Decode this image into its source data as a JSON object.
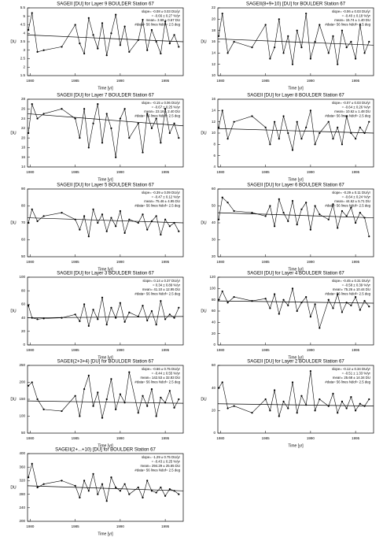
{
  "chart_data": [
    {
      "type": "line",
      "title": "SAGEII [DU] for Layer 9 BOULDER Station 67",
      "xlabel": "Time [yr]",
      "ylabel": "DU",
      "annotations": [
        "slope= -0.08 ± 0.03 DU/yr",
        "= -0.66 ± 0.27 %/yr",
        "mean= 3.68 ± 0.67 DU",
        "#data= 56 lines  Ndof= 2.5 deg"
      ],
      "xlim": [
        1979.7,
        1997
      ],
      "xticks": [
        1980,
        1985,
        1990,
        1995
      ],
      "ylim": [
        1.5,
        5.5
      ],
      "yticks": [
        1.5,
        2.0,
        2.5,
        3.0,
        3.5,
        4.0,
        4.5,
        5.0,
        5.5
      ],
      "color": "#000000",
      "x": [
        1979.8,
        1980.2,
        1980.8,
        1981.5,
        1983.5,
        1985,
        1985.5,
        1986,
        1986.5,
        1987,
        1987.5,
        1988,
        1988.5,
        1989,
        1989.5,
        1990,
        1990.5,
        1991,
        1992,
        1992.5,
        1993,
        1993.5,
        1994,
        1994.5,
        1995,
        1995.5,
        1996,
        1996.5
      ],
      "values": [
        4.2,
        5.2,
        2.9,
        3.0,
        3.2,
        4.5,
        3.4,
        2.8,
        4.9,
        3.9,
        3.1,
        4.6,
        2.7,
        4.0,
        5.1,
        3.3,
        4.4,
        2.9,
        3.6,
        4.8,
        3.0,
        4.2,
        3.5,
        2.8,
        4.7,
        3.4,
        3.9,
        3.2
      ],
      "trend": {
        "x": [
          1979.7,
          1997
        ],
        "values": [
          3.9,
          3.5
        ]
      }
    },
    {
      "type": "line",
      "title": "SAGEII(8+9+10) [DU] for BOULDER Station 67",
      "xlabel": "Time [yr]",
      "ylabel": "DU",
      "annotations": [
        "slope= -0.06 ± 0.03 DU/yr",
        "= -0.40 ± 0.18 %/yr",
        "mean= 15.74 ± 1.40 DU",
        "#data= 56 lines  Ndof= 2.5 deg"
      ],
      "xlim": [
        1979.7,
        1997
      ],
      "xticks": [
        1980,
        1985,
        1990,
        1995
      ],
      "ylim": [
        10,
        22
      ],
      "yticks": [
        10,
        12,
        14,
        16,
        18,
        20,
        22
      ],
      "color": "#000000",
      "x": [
        1979.8,
        1980.2,
        1980.8,
        1981.5,
        1983.5,
        1985,
        1985.5,
        1986,
        1986.5,
        1987,
        1987.5,
        1988,
        1988.5,
        1989,
        1989.5,
        1990,
        1990.5,
        1991,
        1992,
        1992.5,
        1993,
        1993.5,
        1994,
        1994.5,
        1995,
        1995.5,
        1996,
        1996.5
      ],
      "values": [
        17,
        21,
        14,
        16,
        15,
        19,
        13,
        15,
        20,
        14,
        17,
        12,
        18,
        15,
        21,
        13,
        16,
        19,
        14,
        17,
        12,
        18,
        15,
        16,
        13,
        19,
        14,
        16
      ],
      "trend": {
        "x": [
          1979.7,
          1997
        ],
        "values": [
          16.5,
          15.4
        ]
      }
    },
    {
      "type": "line",
      "title": "SAGEII [DU] for Layer 7 BOULDER Station 67",
      "xlabel": "Time [yr]",
      "ylabel": "DU",
      "annotations": [
        "slope= -0.15 ± 0.06 DU/yr",
        "= -0.67 ± 0.25 %/yr",
        "mean= 23.16 ± 2.40 DU",
        "#data= 56 lines  Ndof= 2.5 deg"
      ],
      "xlim": [
        1979.7,
        1997
      ],
      "xticks": [
        1980,
        1985,
        1990,
        1995
      ],
      "ylim": [
        14,
        28
      ],
      "yticks": [
        14,
        16,
        18,
        20,
        22,
        24,
        26,
        28
      ],
      "color": "#000000",
      "x": [
        1979.8,
        1980.2,
        1980.8,
        1981.5,
        1983.5,
        1985,
        1985.5,
        1986,
        1986.5,
        1987,
        1987.5,
        1988,
        1988.5,
        1989,
        1989.5,
        1990,
        1990.5,
        1991,
        1992,
        1992.5,
        1993,
        1993.5,
        1994,
        1994.5,
        1995,
        1995.5,
        1996,
        1996.5
      ],
      "values": [
        21,
        27,
        24,
        25,
        26,
        24,
        20,
        26,
        18,
        23,
        27,
        19,
        25,
        22,
        16,
        24,
        26,
        20,
        23,
        17,
        25,
        22,
        24,
        19,
        26,
        21,
        23,
        20
      ],
      "trend": {
        "x": [
          1979.7,
          1997
        ],
        "values": [
          25,
          22.5
        ]
      }
    },
    {
      "type": "line",
      "title": "SAGEII [DU] for Layer 8 BOULDER Station 67",
      "xlabel": "Time [yr]",
      "ylabel": "DU",
      "annotations": [
        "slope= -0.07 ± 0.03 DU/yr",
        "= -0.64 ± 0.26 %/yr",
        "mean= 10.62 ± 1.48 DU",
        "#data= 56 lines  Ndof= 2.5 deg"
      ],
      "xlim": [
        1979.7,
        1997
      ],
      "xticks": [
        1980,
        1985,
        1990,
        1995
      ],
      "ylim": [
        4,
        16
      ],
      "yticks": [
        4,
        6,
        8,
        10,
        12,
        14,
        16
      ],
      "color": "#000000",
      "x": [
        1979.8,
        1980.2,
        1980.8,
        1981.5,
        1983.5,
        1985,
        1985.5,
        1986,
        1986.5,
        1987,
        1987.5,
        1988,
        1988.5,
        1989,
        1989.5,
        1990,
        1990.5,
        1991,
        1992,
        1992.5,
        1993,
        1993.5,
        1994,
        1994.5,
        1995,
        1995.5,
        1996,
        1996.5
      ],
      "values": [
        11,
        14,
        9,
        12,
        13,
        11,
        8,
        12,
        9,
        13,
        10,
        7,
        12,
        9,
        11,
        14,
        8,
        10,
        12,
        9,
        11,
        8,
        13,
        10,
        9,
        11,
        10,
        12
      ],
      "trend": {
        "x": [
          1979.7,
          1997
        ],
        "values": [
          10.8,
          10
        ]
      }
    },
    {
      "type": "line",
      "title": "SAGEII [DU] for Layer 5 BOULDER Station 67",
      "xlabel": "Time [yr]",
      "ylabel": "DU",
      "annotations": [
        "slope= -0.39 ± 0.09 DU/yr",
        "= -0.47 ± 0.12 %/yr",
        "mean= 75.46 ± 4.95 DU",
        "#data= 56 lines  Ndof= 2.5 deg"
      ],
      "xlim": [
        1979.7,
        1997
      ],
      "xticks": [
        1980,
        1985,
        1990,
        1995
      ],
      "ylim": [
        50,
        90
      ],
      "yticks": [
        50,
        60,
        70,
        80,
        90
      ],
      "color": "#000000",
      "x": [
        1979.8,
        1980.2,
        1980.8,
        1981.5,
        1983.5,
        1985,
        1985.5,
        1986,
        1986.5,
        1987,
        1987.5,
        1988,
        1988.5,
        1989,
        1989.5,
        1990,
        1990.5,
        1991,
        1992,
        1992.5,
        1993,
        1993.5,
        1994,
        1994.5,
        1995,
        1995.5,
        1996,
        1996.5
      ],
      "values": [
        70,
        78,
        71,
        74,
        76,
        72,
        66,
        74,
        62,
        78,
        70,
        75,
        65,
        73,
        68,
        77,
        64,
        72,
        70,
        75,
        66,
        71,
        74,
        63,
        72,
        68,
        70,
        65
      ],
      "trend": {
        "x": [
          1979.7,
          1997
        ],
        "values": [
          73,
          70
        ]
      }
    },
    {
      "type": "line",
      "title": "SAGEII [DU] for Layer 6 BOULDER Station 67",
      "xlabel": "Time [yr]",
      "ylabel": "DU",
      "annotations": [
        "slope= -0.29 ± 0.11 DU/yr",
        "= -0.64 ± 0.24 %/yr",
        "mean= 44.62 ± 5.71 DU",
        "#data= 56 lines  Ndof= 2.5 deg"
      ],
      "xlim": [
        1979.7,
        1997
      ],
      "xticks": [
        1980,
        1985,
        1990,
        1995
      ],
      "ylim": [
        20,
        60
      ],
      "yticks": [
        20,
        30,
        40,
        50,
        60
      ],
      "color": "#000000",
      "x": [
        1979.8,
        1980.2,
        1980.8,
        1981.5,
        1983.5,
        1985,
        1985.5,
        1986,
        1986.5,
        1987,
        1987.5,
        1988,
        1988.5,
        1989,
        1989.5,
        1990,
        1990.5,
        1991,
        1992,
        1992.5,
        1993,
        1993.5,
        1994,
        1994.5,
        1995,
        1995.5,
        1996,
        1996.5
      ],
      "values": [
        42,
        55,
        52,
        47,
        46,
        44,
        50,
        38,
        54,
        46,
        41,
        53,
        39,
        48,
        52,
        36,
        50,
        45,
        42,
        51,
        37,
        47,
        44,
        49,
        40,
        46,
        43,
        32
      ],
      "trend": {
        "x": [
          1979.7,
          1997
        ],
        "values": [
          46,
          43
        ]
      }
    },
    {
      "type": "line",
      "title": "SAGEII [DU] for Layer 3 BOULDER Station 67",
      "xlabel": "Time [yr]",
      "ylabel": "DU",
      "annotations": [
        "slope= 0.14 ± 0.37 DU/yr",
        "= 0.34 ± 0.89 %/yr",
        "mean= 41.10 ± 12.95 DU",
        "#data= 56 lines  Ndof= 2.5 deg"
      ],
      "xlim": [
        1979.7,
        1997
      ],
      "xticks": [
        1980,
        1985,
        1990,
        1995
      ],
      "ylim": [
        0,
        100
      ],
      "yticks": [
        0,
        20,
        40,
        60,
        80,
        100
      ],
      "color": "#000000",
      "x": [
        1979.8,
        1980.2,
        1980.8,
        1981.5,
        1983.5,
        1985,
        1985.5,
        1986,
        1986.5,
        1987,
        1987.5,
        1988,
        1988.5,
        1989,
        1989.5,
        1990,
        1990.5,
        1991,
        1992,
        1992.5,
        1993,
        1993.5,
        1994,
        1994.5,
        1995,
        1995.5,
        1996,
        1996.5
      ],
      "values": [
        58,
        40,
        38,
        39,
        40,
        45,
        35,
        60,
        28,
        52,
        38,
        70,
        30,
        55,
        40,
        62,
        34,
        48,
        42,
        58,
        36,
        50,
        30,
        65,
        38,
        45,
        40,
        55
      ],
      "trend": {
        "x": [
          1979.7,
          1997
        ],
        "values": [
          40,
          42
        ]
      }
    },
    {
      "type": "line",
      "title": "SAGEII [DU] for Layer 4 BOULDER Station 67",
      "xlabel": "Time [yr]",
      "ylabel": "DU",
      "annotations": [
        "slope= -0.45 ± 0.31 DU/yr",
        "= -0.58 ± 0.39 %/yr",
        "mean= 75.26 ± 10.44 DU",
        "#data= 56 lines  Ndof= 2.5 deg"
      ],
      "xlim": [
        1979.7,
        1997
      ],
      "xticks": [
        1980,
        1985,
        1990,
        1995
      ],
      "ylim": [
        0,
        120
      ],
      "yticks": [
        0,
        20,
        40,
        60,
        80,
        100,
        120
      ],
      "color": "#000000",
      "x": [
        1979.8,
        1980.2,
        1980.8,
        1981.5,
        1983.5,
        1985,
        1985.5,
        1986,
        1986.5,
        1987,
        1987.5,
        1988,
        1988.5,
        1989,
        1989.5,
        1990,
        1990.5,
        1991,
        1992,
        1992.5,
        1993,
        1993.5,
        1994,
        1994.5,
        1995,
        1995.5,
        1996,
        1996.5
      ],
      "values": [
        80,
        95,
        75,
        85,
        78,
        82,
        65,
        90,
        55,
        80,
        70,
        100,
        60,
        75,
        85,
        50,
        72,
        30,
        80,
        65,
        90,
        58,
        75,
        70,
        85,
        62,
        78,
        68
      ],
      "trend": {
        "x": [
          1979.7,
          1997
        ],
        "values": [
          78,
          74
        ]
      }
    },
    {
      "type": "line",
      "title": "SAGEII(2+3+4) [DU] for BOULDER Station 67",
      "xlabel": "Time [yr]",
      "ylabel": "DU",
      "annotations": [
        "slope= -0.66 ± 0.75 DU/yr",
        "= -0.44 ± 0.55 %/yr",
        "mean= 142.53 ± 32.83 DU",
        "#data= 56 lines  Ndof= 2.5 deg"
      ],
      "xlim": [
        1979.7,
        1997
      ],
      "xticks": [
        1980,
        1985,
        1990,
        1995
      ],
      "ylim": [
        50,
        250
      ],
      "yticks": [
        50,
        100,
        150,
        200,
        250
      ],
      "color": "#000000",
      "x": [
        1979.8,
        1980.2,
        1980.8,
        1981.5,
        1983.5,
        1985,
        1985.5,
        1986,
        1986.5,
        1987,
        1987.5,
        1988,
        1988.5,
        1989,
        1989.5,
        1990,
        1990.5,
        1991,
        1992,
        1992.5,
        1993,
        1993.5,
        1994,
        1994.5,
        1995,
        1995.5,
        1996,
        1996.5
      ],
      "values": [
        190,
        200,
        150,
        120,
        115,
        160,
        100,
        180,
        220,
        130,
        170,
        95,
        150,
        210,
        120,
        165,
        140,
        230,
        110,
        160,
        130,
        180,
        100,
        155,
        140,
        175,
        125,
        150
      ],
      "trend": {
        "x": [
          1979.7,
          1997
        ],
        "values": [
          145,
          138
        ]
      }
    },
    {
      "type": "line",
      "title": "SAGEII [DU] for Layer 2 BOULDER Station 67",
      "xlabel": "Time [yr]",
      "ylabel": "DU",
      "annotations": [
        "slope= -0.12 ± 0.34 DU/yr",
        "= -0.51 ± 1.33 %/yr",
        "mean= 25.68 ± 14.34 DU",
        "#data= 56 lines  Ndof= 2.5 deg"
      ],
      "xlim": [
        1979.7,
        1997
      ],
      "xticks": [
        1980,
        1985,
        1990,
        1995
      ],
      "ylim": [
        0,
        60
      ],
      "yticks": [
        0,
        20,
        40,
        60
      ],
      "color": "#000000",
      "x": [
        1979.8,
        1980.2,
        1980.8,
        1981.5,
        1983.5,
        1985,
        1985.5,
        1986,
        1986.5,
        1987,
        1987.5,
        1988,
        1988.5,
        1989,
        1989.5,
        1990,
        1990.5,
        1991,
        1992,
        1992.5,
        1993,
        1993.5,
        1994,
        1994.5,
        1995,
        1995.5,
        1996,
        1996.5
      ],
      "values": [
        40,
        45,
        22,
        24,
        18,
        30,
        20,
        38,
        15,
        28,
        22,
        45,
        18,
        33,
        25,
        55,
        20,
        30,
        24,
        35,
        18,
        28,
        22,
        32,
        20,
        26,
        24,
        30
      ],
      "trend": {
        "x": [
          1979.7,
          1997
        ],
        "values": [
          26,
          24
        ]
      }
    },
    {
      "type": "line",
      "title": "SAGEII(2+...+10) [DU] for BOULDER Station 67",
      "xlabel": "Time [yr]",
      "ylabel": "DU",
      "annotations": [
        "slope= -1.29 ± 0.75 DU/yr",
        "= -0.43 ± 0.25 %/yr",
        "mean= 294.29 ± 25.65 DU",
        "#data= 56 lines  Ndof= 2.5 deg"
      ],
      "xlim": [
        1979.7,
        1997
      ],
      "xticks": [
        1980,
        1985,
        1990,
        1995
      ],
      "ylim": [
        200,
        400
      ],
      "yticks": [
        200,
        240,
        280,
        320,
        360,
        400
      ],
      "color": "#000000",
      "x": [
        1979.8,
        1980.2,
        1980.8,
        1981.5,
        1983.5,
        1985,
        1985.5,
        1986,
        1986.5,
        1987,
        1987.5,
        1988,
        1988.5,
        1989,
        1989.5,
        1990,
        1990.5,
        1991,
        1992,
        1992.5,
        1993,
        1993.5,
        1994,
        1994.5,
        1995,
        1995.5,
        1996,
        1996.5
      ],
      "values": [
        330,
        370,
        300,
        310,
        320,
        305,
        270,
        320,
        290,
        340,
        280,
        310,
        260,
        330,
        300,
        290,
        310,
        280,
        300,
        270,
        320,
        290,
        285,
        300,
        275,
        295,
        290,
        280
      ],
      "trend": {
        "x": [
          1979.7,
          1997
        ],
        "values": [
          305,
          290
        ]
      }
    }
  ]
}
